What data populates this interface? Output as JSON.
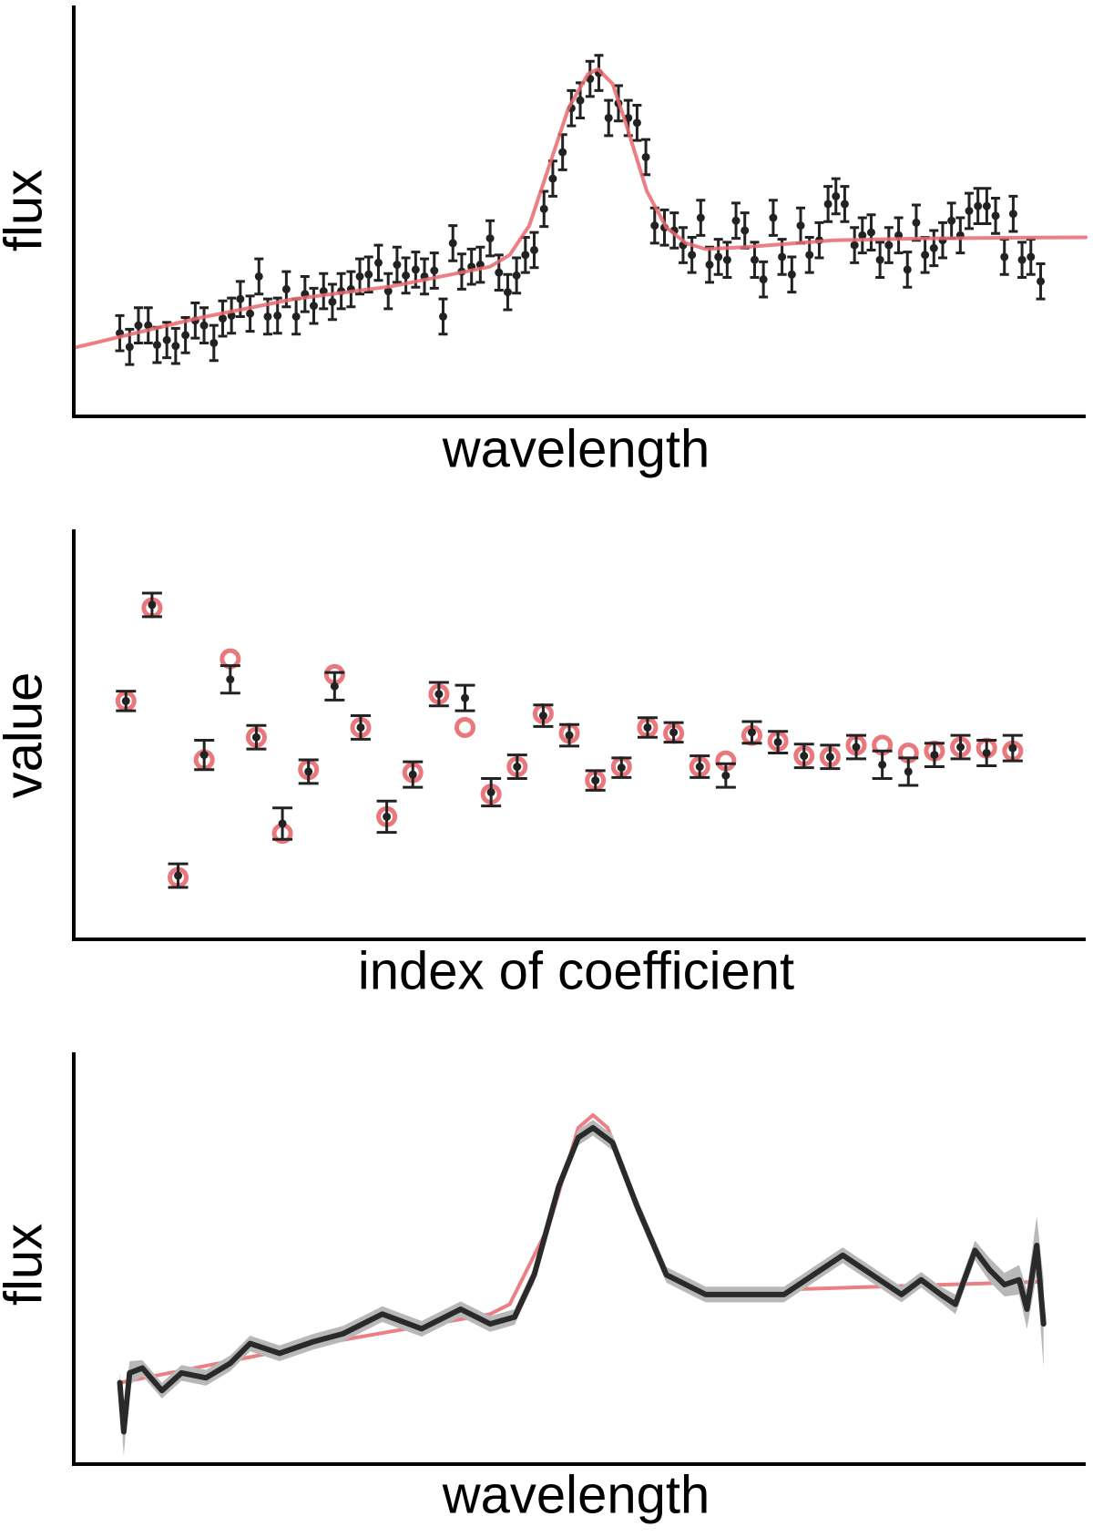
{
  "chart_data": [
    {
      "type": "scatter",
      "x_label": "wavelength",
      "y_label": "flux",
      "xlim": [
        0,
        1033
      ],
      "ylim": [
        0,
        420
      ],
      "series": [
        {
          "mode": "errorbar",
          "color": "#222222",
          "x": [
            47,
            57,
            66,
            76,
            85,
            95,
            104,
            114,
            124,
            133,
            143,
            152,
            161,
            170,
            180,
            189,
            198,
            208,
            217,
            227,
            236,
            245,
            255,
            264,
            273,
            283,
            292,
            301,
            311,
            321,
            330,
            339,
            349,
            358,
            368,
            377,
            387,
            396,
            406,
            415,
            425,
            434,
            443,
            452,
            461,
            470,
            480,
            489,
            499,
            508,
            517,
            527,
            536,
            546,
            556,
            566,
            575,
            584,
            593,
            603,
            613,
            622,
            631,
            640,
            649,
            658,
            667,
            676,
            685,
            695,
            704,
            714,
            723,
            733,
            742,
            751,
            761,
            770,
            778,
            787,
            797,
            805,
            814,
            823,
            832,
            842,
            851,
            860,
            869,
            878,
            887,
            896,
            905,
            914,
            923,
            932,
            941,
            950,
            959,
            968,
            977,
            987
          ],
          "values": [
            85,
            71,
            93,
            93,
            73,
            78,
            72,
            83,
            98,
            93,
            75,
            100,
            103,
            120,
            105,
            143,
            102,
            103,
            130,
            102,
            125,
            113,
            128,
            117,
            128,
            130,
            143,
            145,
            157,
            128,
            155,
            144,
            150,
            143,
            149,
            102,
            177,
            148,
            153,
            155,
            182,
            147,
            127,
            144,
            165,
            170,
            212,
            243,
            270,
            315,
            323,
            345,
            351,
            305,
            320,
            305,
            300,
            265,
            195,
            193,
            190,
            175,
            165,
            203,
            155,
            163,
            160,
            200,
            190,
            160,
            140,
            203,
            163,
            145,
            195,
            165,
            180,
            217,
            225,
            217,
            175,
            185,
            188,
            160,
            175,
            185,
            150,
            198,
            165,
            172,
            180,
            200,
            185,
            210,
            215,
            215,
            205,
            163,
            207,
            160,
            163,
            138
          ],
          "errors": [
            18,
            18,
            18,
            18,
            18,
            18,
            18,
            18,
            18,
            18,
            18,
            18,
            18,
            18,
            18,
            18,
            18,
            18,
            18,
            18,
            18,
            18,
            18,
            18,
            18,
            18,
            18,
            18,
            18,
            18,
            18,
            18,
            18,
            18,
            18,
            18,
            18,
            18,
            18,
            18,
            18,
            18,
            18,
            18,
            18,
            18,
            18,
            18,
            18,
            18,
            18,
            18,
            18,
            18,
            18,
            18,
            18,
            18,
            18,
            18,
            18,
            18,
            18,
            18,
            18,
            18,
            18,
            18,
            18,
            18,
            18,
            18,
            18,
            18,
            18,
            18,
            18,
            18,
            18,
            18,
            18,
            18,
            18,
            18,
            18,
            18,
            18,
            18,
            18,
            18,
            18,
            18,
            18,
            18,
            18,
            18,
            18,
            18,
            18,
            18,
            18,
            18
          ]
        },
        {
          "mode": "line",
          "color": "#e8686e",
          "x": [
            0,
            125,
            225,
            325,
            425,
            445,
            465,
            485,
            505,
            525,
            535,
            550,
            565,
            585,
            605,
            625,
            645,
            685,
            775,
            875,
            1033
          ],
          "values": [
            70,
            100,
            120,
            133,
            153,
            165,
            195,
            255,
            315,
            350,
            355,
            340,
            295,
            230,
            193,
            177,
            171,
            173,
            180,
            182,
            183
          ]
        }
      ]
    },
    {
      "type": "scatter",
      "x_label": "index of coefficient",
      "y_label": "value",
      "xlim": [
        -1,
        37.8
      ],
      "ylim": [
        0,
        418
      ],
      "series": [
        {
          "mode": "ring",
          "color": "#e8686e",
          "x": [
            1,
            2,
            3,
            4,
            5,
            6,
            7,
            8,
            9,
            10,
            11,
            12,
            13,
            14,
            15,
            16,
            17,
            18,
            19,
            20,
            21,
            22,
            23,
            24,
            25,
            26,
            27,
            28,
            29,
            30,
            31,
            32,
            33,
            34,
            35
          ],
          "values": [
            243,
            338,
            63,
            183,
            286,
            206,
            108,
            173,
            270,
            216,
            125,
            170,
            250,
            216,
            148,
            176,
            230,
            210,
            162,
            176,
            216,
            210,
            176,
            182,
            208,
            202,
            187,
            186,
            198,
            198,
            190,
            192,
            196,
            195,
            192
          ]
        },
        {
          "mode": "errorbar",
          "color": "#222222",
          "x": [
            1,
            2,
            3,
            4,
            5,
            6,
            7,
            8,
            9,
            10,
            11,
            12,
            13,
            14,
            15,
            16,
            17,
            18,
            19,
            20,
            21,
            22,
            23,
            24,
            25,
            26,
            27,
            28,
            29,
            30,
            31,
            32,
            33,
            34,
            35
          ],
          "values": [
            243,
            341,
            65,
            188,
            265,
            206,
            118,
            171,
            258,
            216,
            125,
            168,
            250,
            246,
            150,
            176,
            228,
            208,
            162,
            175,
            216,
            211,
            176,
            167,
            211,
            201,
            187,
            186,
            196,
            178,
            171,
            188,
            196,
            190,
            195
          ],
          "errors": [
            10,
            12,
            12,
            15,
            14,
            12,
            16,
            12,
            14,
            12,
            16,
            13,
            12,
            13,
            14,
            12,
            11,
            11,
            10,
            10,
            10,
            10,
            11,
            12,
            11,
            11,
            12,
            12,
            12,
            14,
            14,
            12,
            12,
            13,
            13
          ]
        }
      ]
    },
    {
      "type": "line",
      "x_label": "wavelength",
      "y_label": "flux",
      "xlim": [
        0,
        1033
      ],
      "ylim": [
        0,
        420
      ],
      "series": [
        {
          "mode": "line",
          "color": "#e8686e",
          "x": [
            47,
            225,
            425,
            445,
            485,
            515,
            530,
            545,
            575,
            605,
            645,
            725,
            985
          ],
          "values": [
            83,
            118,
            153,
            163,
            243,
            343,
            356,
            343,
            263,
            193,
            173,
            178,
            186
          ]
        },
        {
          "mode": "band-line",
          "color": "#2a2a2a",
          "band_color": "#b8b8b8",
          "x": [
            47,
            51,
            57,
            70,
            90,
            110,
            135,
            160,
            180,
            210,
            245,
            275,
            315,
            355,
            395,
            425,
            450,
            470,
            495,
            515,
            530,
            550,
            575,
            605,
            645,
            685,
            725,
            755,
            785,
            815,
            845,
            865,
            885,
            900,
            920,
            935,
            950,
            965,
            973,
            983,
            990
          ],
          "values": [
            83,
            33,
            93,
            98,
            75,
            93,
            88,
            103,
            123,
            113,
            125,
            133,
            153,
            138,
            158,
            143,
            150,
            193,
            283,
            333,
            343,
            328,
            263,
            193,
            173,
            173,
            173,
            193,
            213,
            193,
            173,
            188,
            173,
            163,
            218,
            198,
            183,
            188,
            158,
            223,
            143
          ],
          "errors": [
            10,
            25,
            12,
            8,
            8,
            8,
            8,
            8,
            8,
            8,
            8,
            8,
            8,
            8,
            8,
            8,
            8,
            8,
            8,
            8,
            8,
            8,
            8,
            8,
            8,
            8,
            8,
            8,
            8,
            8,
            8,
            8,
            8,
            10,
            10,
            12,
            12,
            15,
            20,
            30,
            45
          ]
        }
      ]
    }
  ]
}
